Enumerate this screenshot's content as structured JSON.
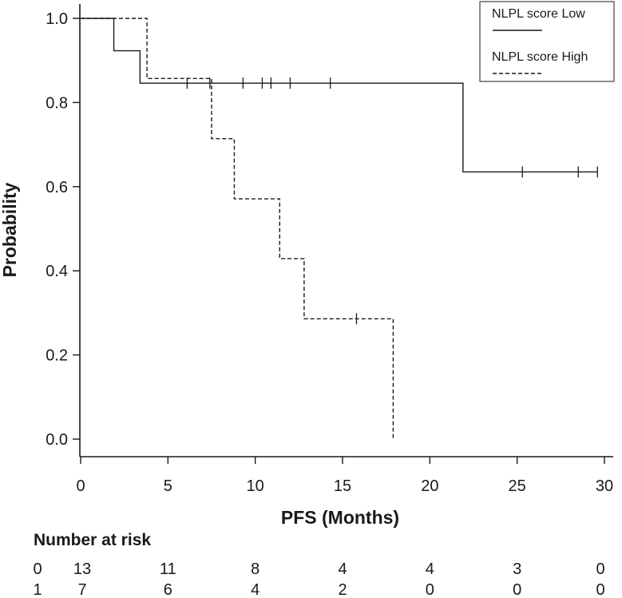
{
  "chart_data": {
    "type": "line",
    "subtype": "kaplan-meier",
    "title": "",
    "xlabel": "PFS (Months)",
    "ylabel": "Probability",
    "xlim": [
      0,
      30
    ],
    "ylim": [
      0,
      1.0
    ],
    "x_ticks": [
      0,
      5,
      10,
      15,
      20,
      25,
      30
    ],
    "x_tick_labels": [
      "0",
      "5",
      "10",
      "15",
      "20",
      "25",
      "30"
    ],
    "y_ticks": [
      0.0,
      0.2,
      0.4,
      0.6,
      0.8,
      1.0
    ],
    "y_tick_labels": [
      "0.0",
      "0.2",
      "0.4",
      "0.6",
      "0.8",
      "1.0"
    ],
    "grid": false,
    "legend_position": "top-right",
    "series": [
      {
        "name": "NLPL score Low",
        "style": "solid",
        "steps": [
          [
            0,
            1.0
          ],
          [
            1.9,
            0.923
          ],
          [
            3.4,
            0.846
          ],
          [
            21.9,
            0.635
          ],
          [
            29.6,
            0.635
          ]
        ],
        "censored": [
          [
            6.1,
            0.846
          ],
          [
            7.4,
            0.846
          ],
          [
            9.3,
            0.846
          ],
          [
            10.4,
            0.846
          ],
          [
            10.9,
            0.846
          ],
          [
            12.0,
            0.846
          ],
          [
            14.3,
            0.846
          ],
          [
            25.3,
            0.635
          ],
          [
            28.5,
            0.635
          ],
          [
            29.6,
            0.635
          ]
        ]
      },
      {
        "name": "NLPL score High",
        "style": "dashed",
        "steps": [
          [
            0,
            1.0
          ],
          [
            3.8,
            0.857
          ],
          [
            7.5,
            0.714
          ],
          [
            8.8,
            0.571
          ],
          [
            11.4,
            0.429
          ],
          [
            12.8,
            0.286
          ],
          [
            17.9,
            0.0
          ]
        ],
        "censored": [
          [
            15.8,
            0.286
          ]
        ]
      }
    ],
    "risk_table": {
      "title": "Number at risk",
      "groups": [
        {
          "label": "0",
          "counts": [
            "13",
            "11",
            "8",
            "4",
            "4",
            "3",
            "0"
          ]
        },
        {
          "label": "1",
          "counts": [
            "7",
            "6",
            "4",
            "2",
            "0",
            "0",
            "0"
          ]
        }
      ]
    }
  }
}
